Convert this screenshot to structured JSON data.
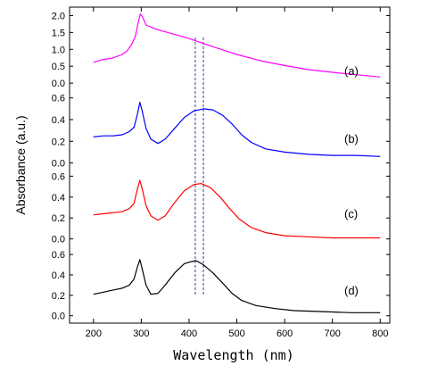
{
  "chart_data": {
    "type": "line",
    "xlabel": "Wavelength (nm)",
    "ylabel": "Absorbance (a.u.)",
    "xlim": [
      150,
      820
    ],
    "x_ticks": [
      "200",
      "300",
      "400",
      "500",
      "600",
      "700",
      "800"
    ],
    "x_tick_values": [
      200,
      300,
      400,
      500,
      600,
      700,
      800
    ],
    "reference_lines": [
      {
        "x": 413,
        "style": "dashed",
        "color": "#3a3aaa"
      },
      {
        "x": 430,
        "style": "dashed",
        "color": "#3a3aaa"
      }
    ],
    "panels": [
      {
        "label": "(a)",
        "color": "#ff00ff",
        "ylim": [
          -0.05,
          2.25
        ],
        "y_ticks": [
          "0.0",
          "0.5",
          "1.0",
          "1.5",
          "2.0"
        ],
        "y_tick_values": [
          0.0,
          0.5,
          1.0,
          1.5,
          2.0
        ],
        "x": [
          200,
          220,
          240,
          260,
          270,
          280,
          288,
          293,
          298,
          303,
          310,
          330,
          360,
          400,
          450,
          500,
          550,
          600,
          650,
          700,
          750,
          800
        ],
        "y": [
          0.62,
          0.7,
          0.74,
          0.85,
          0.95,
          1.15,
          1.4,
          1.75,
          2.05,
          1.95,
          1.72,
          1.6,
          1.48,
          1.32,
          1.08,
          0.85,
          0.66,
          0.52,
          0.4,
          0.32,
          0.25,
          0.18
        ]
      },
      {
        "label": "(b)",
        "color": "#0000ff",
        "ylim": [
          -0.02,
          0.68
        ],
        "y_ticks": [
          "0.0",
          "0.2",
          "0.4",
          "0.6"
        ],
        "y_tick_values": [
          0.0,
          0.2,
          0.4,
          0.6
        ],
        "x": [
          200,
          220,
          240,
          260,
          275,
          285,
          292,
          297,
          302,
          310,
          320,
          335,
          350,
          370,
          390,
          410,
          430,
          450,
          470,
          490,
          510,
          530,
          560,
          600,
          650,
          700,
          750,
          800
        ],
        "y": [
          0.24,
          0.25,
          0.25,
          0.26,
          0.29,
          0.33,
          0.45,
          0.56,
          0.48,
          0.32,
          0.22,
          0.18,
          0.22,
          0.32,
          0.42,
          0.48,
          0.5,
          0.49,
          0.44,
          0.36,
          0.26,
          0.19,
          0.13,
          0.1,
          0.08,
          0.07,
          0.07,
          0.06
        ]
      },
      {
        "label": "(c)",
        "color": "#ff0000",
        "ylim": [
          -0.02,
          0.68
        ],
        "y_ticks": [
          "0.0",
          "0.2",
          "0.4",
          "0.6"
        ],
        "y_tick_values": [
          0.0,
          0.2,
          0.4,
          0.6
        ],
        "x": [
          200,
          220,
          240,
          260,
          275,
          285,
          292,
          297,
          302,
          310,
          320,
          335,
          350,
          370,
          390,
          410,
          425,
          445,
          465,
          485,
          505,
          530,
          560,
          600,
          650,
          700,
          750,
          800
        ],
        "y": [
          0.23,
          0.24,
          0.25,
          0.26,
          0.29,
          0.34,
          0.48,
          0.56,
          0.48,
          0.32,
          0.22,
          0.18,
          0.22,
          0.35,
          0.46,
          0.52,
          0.53,
          0.49,
          0.4,
          0.29,
          0.19,
          0.11,
          0.06,
          0.03,
          0.02,
          0.01,
          0.01,
          0.01
        ]
      },
      {
        "label": "(d)",
        "color": "#000000",
        "ylim": [
          -0.02,
          0.68
        ],
        "y_ticks": [
          "0.0",
          "0.2",
          "0.4",
          "0.6"
        ],
        "y_tick_values": [
          0.0,
          0.2,
          0.4,
          0.6
        ],
        "x": [
          200,
          220,
          240,
          260,
          275,
          285,
          292,
          297,
          302,
          310,
          320,
          335,
          350,
          370,
          390,
          405,
          415,
          430,
          450,
          470,
          490,
          510,
          540,
          580,
          620,
          680,
          740,
          800
        ],
        "y": [
          0.21,
          0.23,
          0.25,
          0.27,
          0.3,
          0.36,
          0.48,
          0.55,
          0.46,
          0.3,
          0.21,
          0.22,
          0.3,
          0.42,
          0.51,
          0.53,
          0.54,
          0.5,
          0.42,
          0.32,
          0.22,
          0.15,
          0.1,
          0.07,
          0.05,
          0.04,
          0.03,
          0.03
        ]
      }
    ]
  }
}
